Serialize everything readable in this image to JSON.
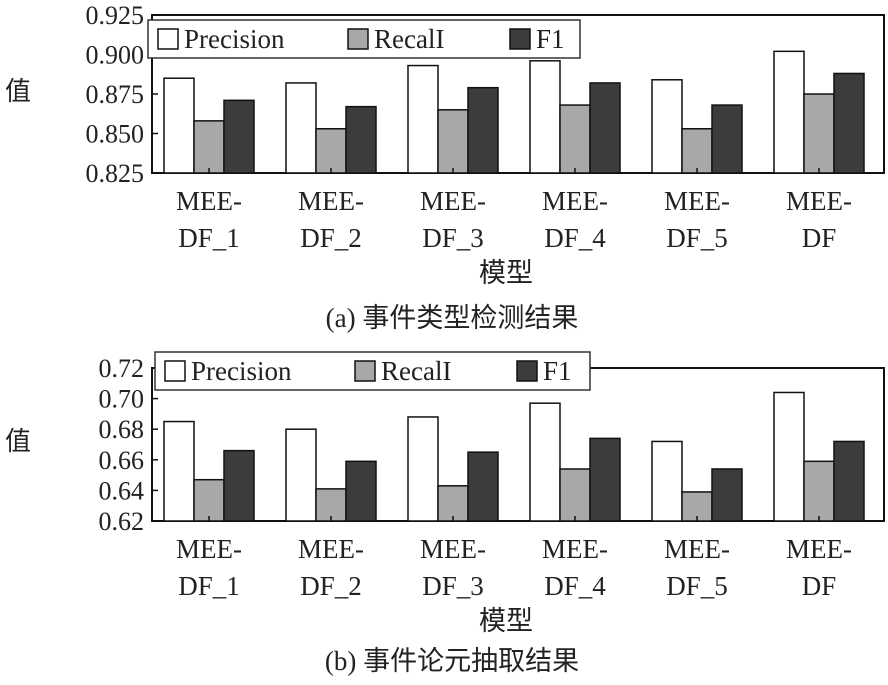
{
  "colors": {
    "Precision": "#ffffff",
    "Recall": "#a8a8a8",
    "F1": "#3c3c3e"
  },
  "chart_data": [
    {
      "type": "bar",
      "title": "",
      "caption": "(a) 事件类型检测结果",
      "xlabel": "模型",
      "ylabel": "值",
      "ylim": [
        0.825,
        0.925
      ],
      "yticks": [
        "0.825",
        "0.850",
        "0.875",
        "0.900",
        "0.925"
      ],
      "categories": [
        [
          "MEE-",
          "DF_1"
        ],
        [
          "MEE-",
          "DF_2"
        ],
        [
          "MEE-",
          "DF_3"
        ],
        [
          "MEE-",
          "DF_4"
        ],
        [
          "MEE-",
          "DF_5"
        ],
        [
          "MEE-",
          "DF"
        ]
      ],
      "legend_position": "top-left",
      "series": [
        {
          "name": "Precision",
          "values": [
            0.885,
            0.882,
            0.893,
            0.896,
            0.884,
            0.902
          ]
        },
        {
          "name": "RecalI",
          "values": [
            0.858,
            0.853,
            0.865,
            0.868,
            0.853,
            0.875
          ]
        },
        {
          "name": "F1",
          "values": [
            0.871,
            0.867,
            0.879,
            0.882,
            0.868,
            0.888
          ]
        }
      ]
    },
    {
      "type": "bar",
      "title": "",
      "caption": "(b) 事件论元抽取结果",
      "xlabel": "模型",
      "ylabel": "值",
      "ylim": [
        0.62,
        0.72
      ],
      "yticks": [
        "0.62",
        "0.64",
        "0.66",
        "0.68",
        "0.70",
        "0.72"
      ],
      "categories": [
        [
          "MEE-",
          "DF_1"
        ],
        [
          "MEE-",
          "DF_2"
        ],
        [
          "MEE-",
          "DF_3"
        ],
        [
          "MEE-",
          "DF_4"
        ],
        [
          "MEE-",
          "DF_5"
        ],
        [
          "MEE-",
          "DF"
        ]
      ],
      "legend_position": "top-left",
      "series": [
        {
          "name": "Precision",
          "values": [
            0.685,
            0.68,
            0.688,
            0.697,
            0.672,
            0.704
          ]
        },
        {
          "name": "RecalI",
          "values": [
            0.647,
            0.641,
            0.643,
            0.654,
            0.639,
            0.659
          ]
        },
        {
          "name": "F1",
          "values": [
            0.666,
            0.659,
            0.665,
            0.674,
            0.654,
            0.672
          ]
        }
      ]
    }
  ]
}
